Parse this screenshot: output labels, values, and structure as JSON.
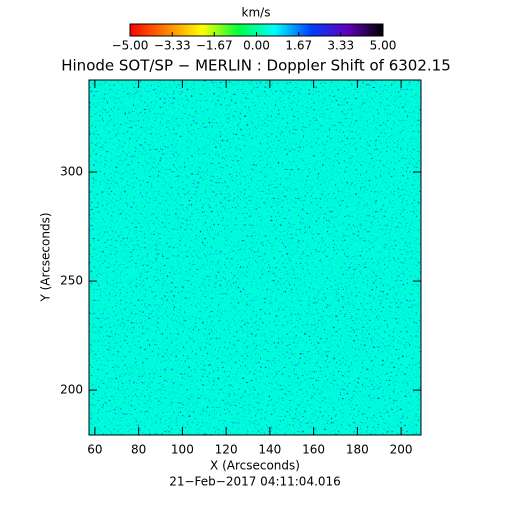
{
  "chart_data": {
    "type": "heatmap",
    "title": "Hinode SOT/SP − MERLIN : Doppler Shift of 6302.15",
    "colorbar": {
      "label": "km/s",
      "lim": [
        -5,
        5
      ],
      "ticks": [
        {
          "value": -5,
          "label": "−5.00"
        },
        {
          "value": -3.33,
          "label": "−3.33"
        },
        {
          "value": -1.67,
          "label": "−1.67"
        },
        {
          "value": 0,
          "label": "0.00"
        },
        {
          "value": 1.67,
          "label": "1.67"
        },
        {
          "value": 3.33,
          "label": "3.33"
        },
        {
          "value": 5,
          "label": "5.00"
        }
      ],
      "colormap": [
        "#ff0000",
        "#ff8000",
        "#ffff00",
        "#00ff40",
        "#00ffff",
        "#0040ff",
        "#6000c0",
        "#000000"
      ]
    },
    "xlabel": "X (Arcseconds)",
    "ylabel": "Y (Arcseconds)",
    "xlim": [
      57.3,
      209.1
    ],
    "xticks": [
      60,
      80,
      100,
      120,
      140,
      160,
      180,
      200
    ],
    "ylim": [
      179.4,
      342.2
    ],
    "yticks": [
      200,
      250,
      300
    ],
    "footer": "21−Feb−2017 04:11:04.016"
  }
}
